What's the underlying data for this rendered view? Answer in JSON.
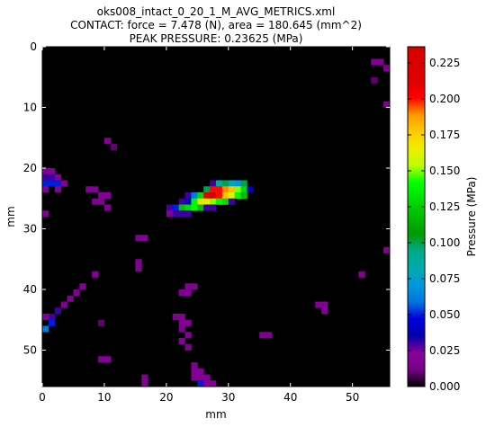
{
  "chart_data": {
    "type": "heatmap",
    "title": "oks008_intact_0_20_1_M_AVG_METRICS.xml",
    "subtitle": "CONTACT: force = 7.478 (N), area = 180.645 (mm^2)",
    "annotation": "PEAK PRESSURE: 0.23625 (MPa)",
    "xlabel": "mm",
    "ylabel": "mm",
    "colorbar_label": "Pressure (MPa)",
    "colormap": "nipy_spectral",
    "xlim": [
      0,
      56
    ],
    "ylim": [
      56,
      0
    ],
    "xticks": [
      0,
      10,
      20,
      30,
      40,
      50
    ],
    "yticks": [
      0,
      10,
      20,
      30,
      40,
      50
    ],
    "clim": [
      0,
      0.23625
    ],
    "cticks": [
      {
        "value": 0,
        "label": "0.000"
      },
      {
        "value": 0.025,
        "label": "0.025"
      },
      {
        "value": 0.05,
        "label": "0.050"
      },
      {
        "value": 0.075,
        "label": "0.075"
      },
      {
        "value": 0.1,
        "label": "0.100"
      },
      {
        "value": 0.125,
        "label": "0.125"
      },
      {
        "value": 0.15,
        "label": "0.150"
      },
      {
        "value": 0.175,
        "label": "0.175"
      },
      {
        "value": 0.2,
        "label": "0.200"
      },
      {
        "value": 0.225,
        "label": "0.225"
      }
    ],
    "x": [
      27,
      28,
      29,
      30,
      31,
      32,
      26,
      27,
      28,
      29,
      30,
      31,
      32,
      33,
      23,
      24,
      25,
      26,
      27,
      28,
      29,
      30,
      31,
      32,
      22,
      23,
      24,
      25,
      26,
      27,
      28,
      29,
      30,
      20,
      21,
      22,
      23,
      24,
      25,
      26,
      27,
      20,
      21,
      22,
      23,
      0,
      1,
      0,
      1,
      2,
      0,
      1,
      2,
      3,
      0,
      2,
      7,
      8,
      9,
      10,
      8,
      9,
      10,
      0,
      10,
      11,
      15,
      16,
      15,
      15,
      8,
      23,
      24,
      22,
      23,
      6,
      5,
      4,
      3,
      2,
      1,
      0,
      1,
      0,
      44,
      45,
      45,
      21,
      22,
      22,
      23,
      22,
      23,
      35,
      36,
      22,
      23,
      9,
      10,
      24,
      24,
      25,
      24,
      25,
      26,
      16,
      16,
      25,
      26,
      27,
      53,
      54,
      55,
      53,
      55,
      55,
      51,
      9
    ],
    "y": [
      22,
      22,
      22,
      22,
      22,
      22,
      23,
      23,
      23,
      23,
      23,
      23,
      23,
      23,
      24,
      24,
      24,
      24,
      24,
      24,
      24,
      24,
      24,
      24,
      25,
      25,
      25,
      25,
      25,
      25,
      25,
      25,
      25,
      26,
      26,
      26,
      26,
      26,
      26,
      26,
      26,
      27,
      27,
      27,
      27,
      20,
      20,
      21,
      21,
      21,
      22,
      22,
      22,
      22,
      23,
      23,
      23,
      23,
      24,
      24,
      25,
      25,
      26,
      27,
      15,
      16,
      31,
      31,
      35,
      36,
      37,
      39,
      39,
      40,
      40,
      39,
      40,
      41,
      42,
      43,
      44,
      44,
      45,
      46,
      42,
      42,
      43,
      44,
      44,
      45,
      45,
      46,
      47,
      47,
      47,
      48,
      49,
      51,
      51,
      52,
      53,
      53,
      54,
      54,
      54,
      54,
      55,
      55,
      55,
      55,
      2,
      2,
      3,
      5,
      9,
      33,
      37,
      45
    ],
    "values": [
      0.03,
      0.09,
      0.1,
      0.08,
      0.07,
      0.1,
      0.1,
      0.2,
      0.2,
      0.19,
      0.18,
      0.15,
      0.13,
      0.04,
      0.03,
      0.06,
      0.13,
      0.22,
      0.23625,
      0.2,
      0.18,
      0.16,
      0.14,
      0.12,
      0.03,
      0.04,
      0.14,
      0.17,
      0.16,
      0.15,
      0.14,
      0.13,
      0.03,
      0.03,
      0.05,
      0.12,
      0.13,
      0.14,
      0.12,
      0.03,
      0.03,
      0.02,
      0.03,
      0.03,
      0.03,
      0.02,
      0.02,
      0.03,
      0.03,
      0.02,
      0.05,
      0.05,
      0.05,
      0.02,
      0.02,
      0.02,
      0.02,
      0.02,
      0.02,
      0.02,
      0.02,
      0.02,
      0.02,
      0.02,
      0.02,
      0.01,
      0.02,
      0.02,
      0.02,
      0.02,
      0.02,
      0.02,
      0.02,
      0.02,
      0.02,
      0.02,
      0.02,
      0.02,
      0.02,
      0.03,
      0.03,
      0.02,
      0.05,
      0.06,
      0.02,
      0.02,
      0.02,
      0.02,
      0.02,
      0.02,
      0.02,
      0.02,
      0.02,
      0.02,
      0.02,
      0.02,
      0.02,
      0.02,
      0.02,
      0.02,
      0.02,
      0.02,
      0.02,
      0.02,
      0.02,
      0.02,
      0.02,
      0.05,
      0.02,
      0.02,
      0.02,
      0.02,
      0.02,
      0.01,
      0.02,
      0.02,
      0.02,
      0.01
    ]
  }
}
